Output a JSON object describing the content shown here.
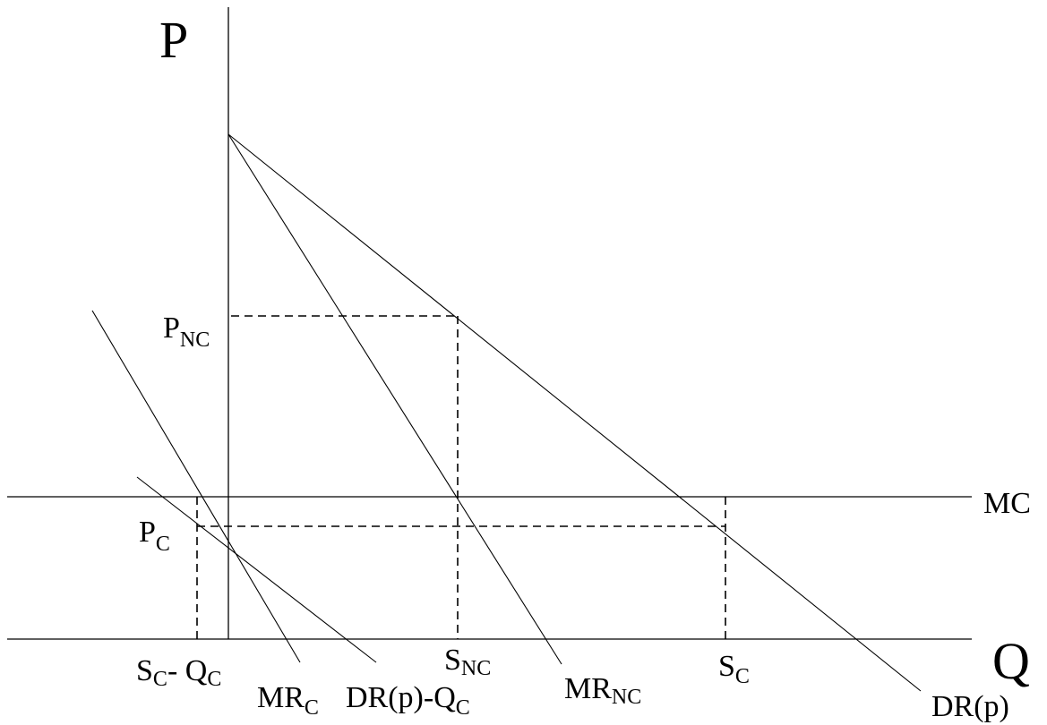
{
  "axes": {
    "y_label": "P",
    "x_label": "Q"
  },
  "curves": {
    "mc": "MC",
    "dr_main": "DR",
    "dr_main_arg": "(p)",
    "mr_nc_main": "MR",
    "mr_nc_sub": "NC",
    "mr_c_main": "MR",
    "mr_c_sub": "C",
    "drq_main": "DR(p)-Q",
    "drq_sub": "C"
  },
  "prices": {
    "p_nc_main": "P",
    "p_nc_sub": "NC",
    "p_c_main": "P",
    "p_c_sub": "C"
  },
  "quantities": {
    "s_nc_main": "S",
    "s_nc_sub": "NC",
    "s_c_main": "S",
    "s_c_sub": "C",
    "sq_main1": "S",
    "sq_sub1": "C",
    "sq_mid": "- Q",
    "sq_sub2": "C"
  },
  "style": {
    "line_color": "#000000",
    "background": "#ffffff"
  }
}
